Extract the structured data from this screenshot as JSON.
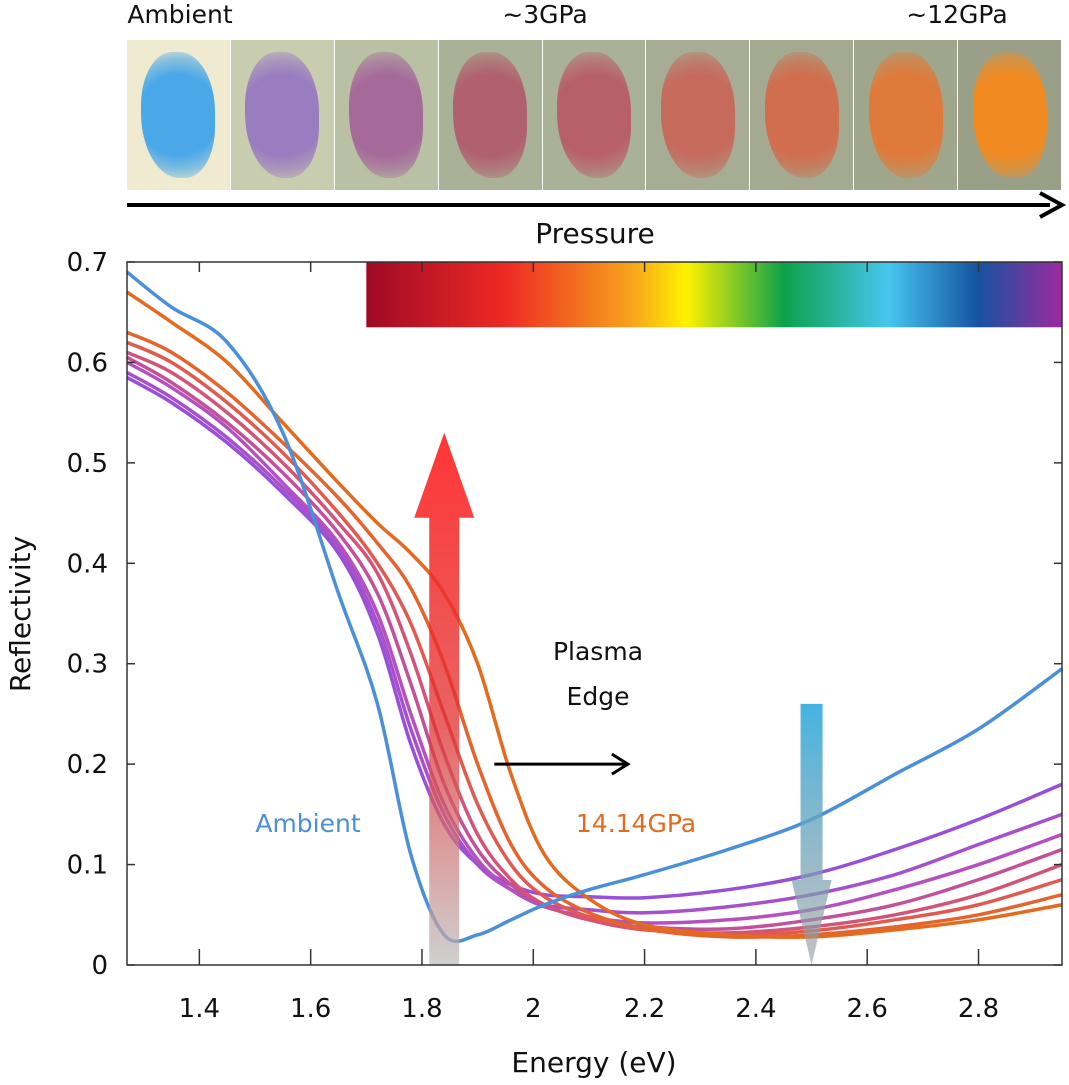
{
  "header": {
    "photo_labels": [
      "Ambient",
      "~3GPa",
      "~12GPa"
    ],
    "pressure_label": "Pressure",
    "photo_panels": [
      {
        "bg": "#f0ead0",
        "sample": "#4aa8e8"
      },
      {
        "bg": "#c8cdb0",
        "sample": "#9a7cc0"
      },
      {
        "bg": "#b9c0a4",
        "sample": "#a56a9a"
      },
      {
        "bg": "#a9b197",
        "sample": "#b0606e"
      },
      {
        "bg": "#a9b197",
        "sample": "#b8606a"
      },
      {
        "bg": "#a6ad94",
        "sample": "#c66a5c"
      },
      {
        "bg": "#a3aa90",
        "sample": "#d06e4e"
      },
      {
        "bg": "#9fa68c",
        "sample": "#e07a3a"
      },
      {
        "bg": "#9aa088",
        "sample": "#f08a20"
      }
    ]
  },
  "chart_data": {
    "type": "line",
    "xlabel": "Energy (eV)",
    "ylabel": "Reflectivity",
    "xlim": [
      1.27,
      2.95
    ],
    "ylim": [
      0,
      0.7
    ],
    "xticks": [
      1.4,
      1.6,
      1.8,
      2,
      2.2,
      2.4,
      2.6,
      2.8
    ],
    "xtick_labels": [
      "1.4",
      "1.6",
      "1.8",
      "2",
      "2.2",
      "2.4",
      "2.6",
      "2.8"
    ],
    "yticks": [
      0,
      0.1,
      0.2,
      0.3,
      0.4,
      0.5,
      0.6,
      0.7
    ],
    "ytick_labels": [
      "0",
      "0.1",
      "0.2",
      "0.3",
      "0.4",
      "0.5",
      "0.6",
      "0.7"
    ],
    "grid": false,
    "x": [
      1.27,
      1.35,
      1.45,
      1.55,
      1.65,
      1.72,
      1.78,
      1.84,
      1.9,
      1.96,
      2.02,
      2.1,
      2.2,
      2.35,
      2.5,
      2.65,
      2.8,
      2.95
    ],
    "series": [
      {
        "name": "Ambient",
        "color": "#4a90d9",
        "values": [
          0.69,
          0.655,
          0.62,
          0.53,
          0.37,
          0.26,
          0.11,
          0.03,
          0.03,
          0.045,
          0.06,
          0.075,
          0.09,
          0.115,
          0.145,
          0.19,
          0.235,
          0.295
        ]
      },
      {
        "color": "#9a4fd8",
        "values": [
          0.585,
          0.56,
          0.52,
          0.47,
          0.41,
          0.33,
          0.22,
          0.14,
          0.1,
          0.08,
          0.07,
          0.068,
          0.067,
          0.075,
          0.09,
          0.115,
          0.145,
          0.18
        ]
      },
      {
        "color": "#a650cc",
        "values": [
          0.59,
          0.565,
          0.525,
          0.475,
          0.415,
          0.34,
          0.235,
          0.15,
          0.1,
          0.075,
          0.06,
          0.055,
          0.052,
          0.058,
          0.07,
          0.09,
          0.12,
          0.15
        ]
      },
      {
        "color": "#b550c0",
        "values": [
          0.6,
          0.575,
          0.535,
          0.48,
          0.42,
          0.35,
          0.25,
          0.16,
          0.105,
          0.075,
          0.058,
          0.048,
          0.042,
          0.045,
          0.055,
          0.075,
          0.1,
          0.13
        ]
      },
      {
        "color": "#c5509a",
        "values": [
          0.605,
          0.58,
          0.54,
          0.49,
          0.43,
          0.37,
          0.28,
          0.18,
          0.115,
          0.08,
          0.06,
          0.045,
          0.038,
          0.036,
          0.045,
          0.06,
          0.085,
          0.115
        ]
      },
      {
        "color": "#d45478",
        "values": [
          0.61,
          0.59,
          0.55,
          0.5,
          0.44,
          0.39,
          0.31,
          0.21,
          0.13,
          0.085,
          0.06,
          0.045,
          0.035,
          0.032,
          0.038,
          0.05,
          0.07,
          0.1
        ]
      },
      {
        "color": "#e05a50",
        "values": [
          0.62,
          0.6,
          0.56,
          0.51,
          0.45,
          0.4,
          0.34,
          0.25,
          0.16,
          0.1,
          0.068,
          0.048,
          0.036,
          0.03,
          0.034,
          0.045,
          0.06,
          0.085
        ]
      },
      {
        "color": "#e6632e",
        "values": [
          0.63,
          0.61,
          0.57,
          0.52,
          0.465,
          0.42,
          0.375,
          0.3,
          0.2,
          0.12,
          0.078,
          0.052,
          0.036,
          0.028,
          0.03,
          0.038,
          0.05,
          0.07
        ]
      },
      {
        "name": "14.14GPa",
        "color": "#e46a1e",
        "values": [
          0.67,
          0.64,
          0.6,
          0.54,
          0.48,
          0.44,
          0.41,
          0.37,
          0.3,
          0.19,
          0.11,
          0.066,
          0.04,
          0.03,
          0.028,
          0.035,
          0.045,
          0.06
        ]
      }
    ],
    "annotations": {
      "ambient_label": "Ambient",
      "high_pressure_label": "14.14GPa",
      "plasma_edge_line1": "Plasma",
      "plasma_edge_line2": "Edge"
    },
    "spectrum_bar": {
      "x_range": [
        1.7,
        2.95
      ],
      "y_range": [
        0.635,
        0.7
      ]
    },
    "up_arrow": {
      "x": 1.84,
      "from": 0,
      "to": 0.53,
      "color": "#ff2a2a"
    },
    "down_arrow": {
      "x": 2.5,
      "from": 0.26,
      "to": 0,
      "color": "#3ab0e0"
    },
    "plasma_arrow": {
      "from": 1.93,
      "to": 2.17,
      "y": 0.2
    }
  }
}
